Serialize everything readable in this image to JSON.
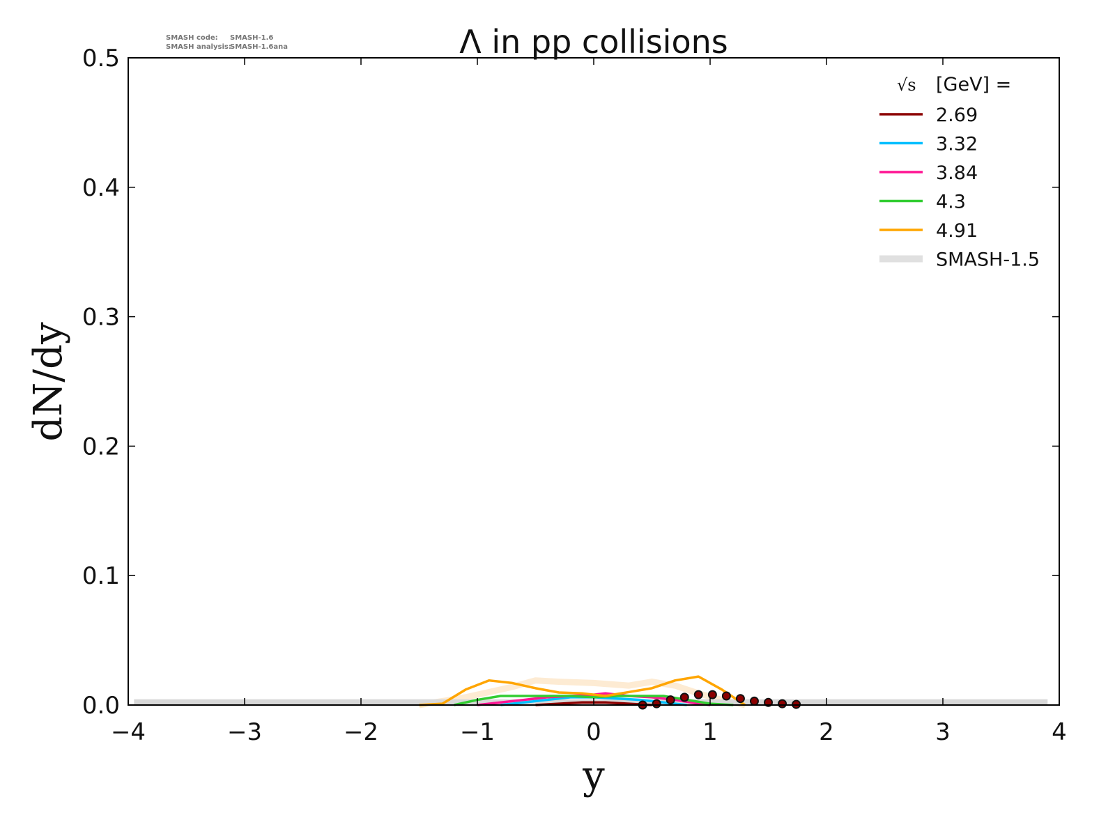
{
  "version_info": {
    "code_label": "SMASH code:",
    "code_value": "SMASH-1.6",
    "analysis_label": "SMASH analysis:",
    "analysis_value": "SMASH-1.6ana"
  },
  "chart_data": {
    "type": "line",
    "title": "Λ in pp collisions",
    "xlabel": "y",
    "ylabel": "dN/dy",
    "xlim": [
      -4,
      4
    ],
    "ylim": [
      0,
      0.5
    ],
    "xticks": [
      "−4",
      "−3",
      "−2",
      "−1",
      "0",
      "1",
      "2",
      "3",
      "4"
    ],
    "xtick_values": [
      -4,
      -3,
      -2,
      -1,
      0,
      1,
      2,
      3,
      4
    ],
    "yticks": [
      "0.0",
      "0.1",
      "0.2",
      "0.3",
      "0.4",
      "0.5"
    ],
    "ytick_values": [
      0,
      0.1,
      0.2,
      0.3,
      0.4,
      0.5
    ],
    "legend": {
      "title": "[GeV] =",
      "title_prefix": "√s",
      "placement": "top-right"
    },
    "series": [
      {
        "name": "2.69",
        "color": "#8b0000",
        "x": [
          -0.5,
          -0.3,
          -0.1,
          0.1,
          0.3,
          0.5
        ],
        "y": [
          0.0,
          0.001,
          0.002,
          0.002,
          0.001,
          0.0
        ]
      },
      {
        "name": "3.32",
        "color": "#00bfff",
        "x": [
          -0.8,
          -0.6,
          -0.4,
          -0.2,
          0.0,
          0.2,
          0.4,
          0.6,
          0.8
        ],
        "y": [
          0.0,
          0.002,
          0.004,
          0.006,
          0.006,
          0.005,
          0.004,
          0.002,
          0.0
        ]
      },
      {
        "name": "3.84",
        "color": "#ff1493",
        "x": [
          -1.0,
          -0.8,
          -0.6,
          -0.4,
          -0.2,
          0.0,
          0.1,
          0.3,
          0.5,
          0.7,
          0.9,
          1.0
        ],
        "y": [
          0.0,
          0.002,
          0.004,
          0.006,
          0.007,
          0.008,
          0.009,
          0.007,
          0.006,
          0.004,
          0.001,
          0.0
        ]
      },
      {
        "name": "4.3",
        "color": "#32cd32",
        "x": [
          -1.2,
          -1.0,
          -0.8,
          -0.6,
          -0.4,
          -0.2,
          0.0,
          0.2,
          0.4,
          0.6,
          0.8,
          1.0,
          1.2
        ],
        "y": [
          0.0,
          0.004,
          0.007,
          0.007,
          0.007,
          0.007,
          0.006,
          0.007,
          0.007,
          0.007,
          0.004,
          0.001,
          0.0
        ]
      },
      {
        "name": "4.91",
        "color": "#ffa500",
        "x": [
          -1.5,
          -1.3,
          -1.1,
          -0.9,
          -0.7,
          -0.5,
          -0.3,
          -0.1,
          0.1,
          0.3,
          0.5,
          0.7,
          0.9,
          1.1,
          1.3
        ],
        "y": [
          0.0,
          0.001,
          0.012,
          0.019,
          0.017,
          0.013,
          0.0097,
          0.009,
          0.007,
          0.01,
          0.013,
          0.019,
          0.022,
          0.012,
          0.0
        ]
      }
    ],
    "reference": {
      "name": "SMASH-1.5",
      "color": "#e0e0e0",
      "bands": [
        {
          "color": "#fdebd3",
          "x": [
            -1.5,
            -1.1,
            -0.7,
            -0.5,
            -0.3,
            0.0,
            0.3,
            0.5,
            0.7,
            0.9,
            1.1,
            1.3
          ],
          "y": [
            0.0,
            0.006,
            0.014,
            0.019,
            0.018,
            0.017,
            0.015,
            0.018,
            0.015,
            0.009,
            0.004,
            0.0
          ]
        },
        {
          "color": "#d8d8d8",
          "x": [
            -3.95,
            3.9
          ],
          "y": [
            0.002,
            0.002
          ]
        }
      ]
    },
    "experimental_points": {
      "color": "#8b0000",
      "x": [
        0.42,
        0.54,
        0.66,
        0.78,
        0.9,
        1.02,
        1.14,
        1.26,
        1.38,
        1.5,
        1.62,
        1.74
      ],
      "y": [
        0.0,
        0.001,
        0.004,
        0.006,
        0.008,
        0.008,
        0.007,
        0.005,
        0.003,
        0.002,
        0.001,
        0.0005
      ]
    }
  }
}
